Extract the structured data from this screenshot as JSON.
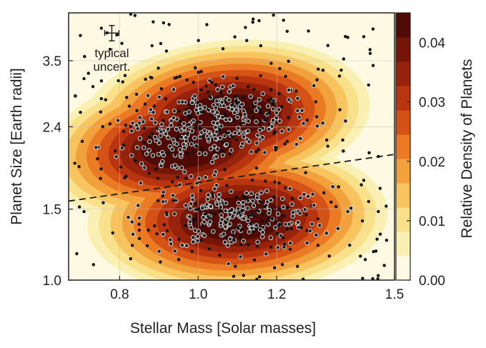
{
  "chart_data": {
    "type": "scatter",
    "xlabel": "Stellar Mass [Solar masses]",
    "ylabel": "Planet Size [Earth radii]",
    "xlim": [
      0.67,
      1.5
    ],
    "ylim": [
      1.0,
      4.6
    ],
    "y_scale": "log",
    "grid": true,
    "x_ticks": [
      {
        "value": 0.8,
        "label": "0.8"
      },
      {
        "value": 1.0,
        "label": "1.0"
      },
      {
        "value": 1.2,
        "label": "1.2"
      },
      {
        "value": 1.5,
        "label": "1.5"
      }
    ],
    "y_ticks": [
      {
        "value": 1.0,
        "label": "1.0"
      },
      {
        "value": 1.5,
        "label": "1.5"
      },
      {
        "value": 2.4,
        "label": "2.4"
      },
      {
        "value": 3.5,
        "label": "3.5"
      }
    ],
    "colorbar": {
      "label": "Relative Density of Planets",
      "range": [
        0.0,
        0.045
      ],
      "ticks": [
        {
          "value": 0.0,
          "label": "0.00"
        },
        {
          "value": 0.01,
          "label": "0.01"
        },
        {
          "value": 0.02,
          "label": "0.02"
        },
        {
          "value": 0.03,
          "label": "0.03"
        },
        {
          "value": 0.04,
          "label": "0.04"
        }
      ],
      "levels": [
        "#fdf9e2",
        "#fbf0b4",
        "#f9e08a",
        "#f7c460",
        "#f2a23c",
        "#ea7a24",
        "#d55216",
        "#b8350f",
        "#98230c",
        "#761608",
        "#4f0a05"
      ]
    },
    "density_peaks": [
      {
        "x": 1.07,
        "y": 2.55,
        "amplitude": 0.045
      },
      {
        "x": 0.97,
        "y": 2.15,
        "amplitude": 0.04
      },
      {
        "x": 1.1,
        "y": 1.42,
        "amplitude": 0.045
      }
    ],
    "trend_line": {
      "style": "dashed",
      "x": [
        0.67,
        1.5
      ],
      "y": [
        1.57,
        2.05
      ]
    },
    "annotation": {
      "text_line1": "typical",
      "text_line2": "uncert.",
      "x": 0.78,
      "y": 4.1,
      "x_error": 0.018,
      "y_error": 0.18
    }
  }
}
